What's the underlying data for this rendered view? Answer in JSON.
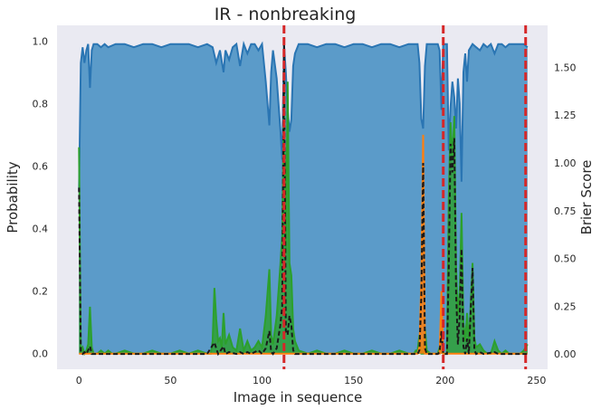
{
  "chart_data": {
    "type": "area",
    "title": "IR - nonbreaking",
    "xlabel": "Image in sequence",
    "ylabel": "Probability",
    "y2label": "Brier Score",
    "xlim": [
      -12,
      256
    ],
    "ylim": [
      -0.05,
      1.05
    ],
    "y2lim": [
      -0.08,
      1.72
    ],
    "x_ticks": [
      0,
      50,
      100,
      150,
      200,
      250
    ],
    "y_ticks": [
      0.0,
      0.2,
      0.4,
      0.6,
      0.8,
      1.0
    ],
    "y2_ticks": [
      0.0,
      0.25,
      0.5,
      0.75,
      1.0,
      1.25,
      1.5
    ],
    "grid": false,
    "boundaries": [
      112,
      199,
      244
    ],
    "colors": {
      "background": "#eaeaf2",
      "blue_fill": "#5b9bc9",
      "blue_line": "#2a75b3",
      "green": "#2ca02c",
      "orange": "#ff7f0e",
      "brier": "#1a1a1a",
      "boundary": "#d62728"
    },
    "series": [
      {
        "kind": "blue",
        "axis": "left",
        "points": [
          [
            0,
            0.52
          ],
          [
            1,
            0.93
          ],
          [
            2,
            0.98
          ],
          [
            3,
            0.93
          ],
          [
            4,
            0.97
          ],
          [
            5,
            0.99
          ],
          [
            6,
            0.85
          ],
          [
            7,
            0.97
          ],
          [
            8,
            0.99
          ],
          [
            10,
            0.99
          ],
          [
            12,
            0.98
          ],
          [
            14,
            0.99
          ],
          [
            16,
            0.98
          ],
          [
            20,
            0.99
          ],
          [
            25,
            0.99
          ],
          [
            30,
            0.98
          ],
          [
            35,
            0.99
          ],
          [
            40,
            0.99
          ],
          [
            45,
            0.98
          ],
          [
            50,
            0.99
          ],
          [
            55,
            0.99
          ],
          [
            60,
            0.99
          ],
          [
            65,
            0.98
          ],
          [
            70,
            0.99
          ],
          [
            73,
            0.98
          ],
          [
            75,
            0.93
          ],
          [
            77,
            0.97
          ],
          [
            79,
            0.9
          ],
          [
            80,
            0.97
          ],
          [
            82,
            0.94
          ],
          [
            84,
            0.98
          ],
          [
            86,
            0.99
          ],
          [
            88,
            0.92
          ],
          [
            90,
            0.99
          ],
          [
            92,
            0.96
          ],
          [
            94,
            0.99
          ],
          [
            96,
            0.99
          ],
          [
            98,
            0.97
          ],
          [
            100,
            0.99
          ],
          [
            102,
            0.87
          ],
          [
            104,
            0.73
          ],
          [
            105,
            0.9
          ],
          [
            106,
            0.97
          ],
          [
            108,
            0.88
          ],
          [
            110,
            0.72
          ],
          [
            111,
            0.62
          ],
          [
            112,
            0.99
          ],
          [
            113,
            0.9
          ],
          [
            114,
            0.78
          ],
          [
            115,
            0.71
          ],
          [
            116,
            0.75
          ],
          [
            117,
            0.92
          ],
          [
            118,
            0.96
          ],
          [
            120,
            0.99
          ],
          [
            125,
            0.99
          ],
          [
            130,
            0.98
          ],
          [
            135,
            0.99
          ],
          [
            140,
            0.99
          ],
          [
            145,
            0.98
          ],
          [
            150,
            0.99
          ],
          [
            155,
            0.99
          ],
          [
            160,
            0.98
          ],
          [
            165,
            0.99
          ],
          [
            170,
            0.99
          ],
          [
            175,
            0.98
          ],
          [
            180,
            0.99
          ],
          [
            184,
            0.99
          ],
          [
            185,
            0.99
          ],
          [
            186,
            0.93
          ],
          [
            187,
            0.75
          ],
          [
            188,
            0.72
          ],
          [
            189,
            0.92
          ],
          [
            190,
            0.99
          ],
          [
            192,
            0.99
          ],
          [
            194,
            0.99
          ],
          [
            196,
            0.99
          ],
          [
            197,
            0.97
          ],
          [
            198,
            0.78
          ],
          [
            199,
            0.99
          ],
          [
            201,
            0.99
          ],
          [
            202,
            0.65
          ],
          [
            203,
            0.79
          ],
          [
            204,
            0.87
          ],
          [
            205,
            0.82
          ],
          [
            206,
            0.72
          ],
          [
            207,
            0.88
          ],
          [
            208,
            0.8
          ],
          [
            209,
            0.55
          ],
          [
            210,
            0.9
          ],
          [
            211,
            0.96
          ],
          [
            212,
            0.87
          ],
          [
            213,
            0.97
          ],
          [
            215,
            0.99
          ],
          [
            217,
            0.98
          ],
          [
            219,
            0.97
          ],
          [
            221,
            0.99
          ],
          [
            223,
            0.98
          ],
          [
            225,
            0.99
          ],
          [
            227,
            0.96
          ],
          [
            229,
            0.99
          ],
          [
            231,
            0.99
          ],
          [
            233,
            0.98
          ],
          [
            235,
            0.99
          ],
          [
            237,
            0.99
          ],
          [
            239,
            0.99
          ],
          [
            241,
            0.99
          ],
          [
            243,
            0.99
          ],
          [
            245,
            0.98
          ]
        ]
      },
      {
        "kind": "green",
        "axis": "left",
        "points": [
          [
            0,
            0.66
          ],
          [
            1,
            0.01
          ],
          [
            2,
            0.02
          ],
          [
            3,
            0.0
          ],
          [
            4,
            0.01
          ],
          [
            5,
            0.03
          ],
          [
            6,
            0.15
          ],
          [
            7,
            0.02
          ],
          [
            8,
            0.0
          ],
          [
            10,
            0.0
          ],
          [
            12,
            0.01
          ],
          [
            14,
            0.0
          ],
          [
            16,
            0.01
          ],
          [
            18,
            0.0
          ],
          [
            20,
            0.0
          ],
          [
            25,
            0.01
          ],
          [
            30,
            0.0
          ],
          [
            35,
            0.0
          ],
          [
            40,
            0.01
          ],
          [
            45,
            0.0
          ],
          [
            50,
            0.0
          ],
          [
            55,
            0.01
          ],
          [
            60,
            0.0
          ],
          [
            65,
            0.01
          ],
          [
            70,
            0.0
          ],
          [
            72,
            0.0
          ],
          [
            73,
            0.04
          ],
          [
            74,
            0.21
          ],
          [
            75,
            0.11
          ],
          [
            76,
            0.04
          ],
          [
            77,
            0.05
          ],
          [
            78,
            0.02
          ],
          [
            79,
            0.13
          ],
          [
            80,
            0.03
          ],
          [
            82,
            0.06
          ],
          [
            84,
            0.02
          ],
          [
            86,
            0.01
          ],
          [
            88,
            0.08
          ],
          [
            90,
            0.01
          ],
          [
            92,
            0.04
          ],
          [
            94,
            0.01
          ],
          [
            96,
            0.02
          ],
          [
            98,
            0.04
          ],
          [
            100,
            0.02
          ],
          [
            102,
            0.12
          ],
          [
            104,
            0.27
          ],
          [
            105,
            0.06
          ],
          [
            106,
            0.03
          ],
          [
            108,
            0.12
          ],
          [
            110,
            0.28
          ],
          [
            111,
            0.38
          ],
          [
            112,
            0.86
          ],
          [
            113,
            0.32
          ],
          [
            114,
            0.87
          ],
          [
            115,
            0.29
          ],
          [
            116,
            0.25
          ],
          [
            117,
            0.08
          ],
          [
            118,
            0.04
          ],
          [
            120,
            0.01
          ],
          [
            125,
            0.0
          ],
          [
            130,
            0.01
          ],
          [
            135,
            0.0
          ],
          [
            140,
            0.0
          ],
          [
            145,
            0.01
          ],
          [
            150,
            0.0
          ],
          [
            155,
            0.0
          ],
          [
            160,
            0.01
          ],
          [
            165,
            0.0
          ],
          [
            170,
            0.0
          ],
          [
            175,
            0.01
          ],
          [
            180,
            0.0
          ],
          [
            183,
            0.0
          ],
          [
            184,
            0.01
          ],
          [
            185,
            0.01
          ],
          [
            186,
            0.06
          ],
          [
            187,
            0.0
          ],
          [
            188,
            0.0
          ],
          [
            189,
            0.08
          ],
          [
            190,
            0.01
          ],
          [
            192,
            0.0
          ],
          [
            194,
            0.0
          ],
          [
            196,
            0.0
          ],
          [
            197,
            0.02
          ],
          [
            198,
            0.01
          ],
          [
            199,
            0.0
          ],
          [
            201,
            0.0
          ],
          [
            202,
            0.5
          ],
          [
            203,
            0.74
          ],
          [
            204,
            0.62
          ],
          [
            205,
            0.76
          ],
          [
            206,
            0.28
          ],
          [
            207,
            0.12
          ],
          [
            208,
            0.2
          ],
          [
            209,
            0.45
          ],
          [
            210,
            0.1
          ],
          [
            211,
            0.04
          ],
          [
            212,
            0.13
          ],
          [
            213,
            0.03
          ],
          [
            215,
            0.29
          ],
          [
            216,
            0.05
          ],
          [
            217,
            0.02
          ],
          [
            219,
            0.03
          ],
          [
            221,
            0.01
          ],
          [
            223,
            0.0
          ],
          [
            225,
            0.0
          ],
          [
            227,
            0.04
          ],
          [
            229,
            0.01
          ],
          [
            231,
            0.0
          ],
          [
            233,
            0.01
          ],
          [
            235,
            0.0
          ],
          [
            237,
            0.0
          ],
          [
            239,
            0.0
          ],
          [
            241,
            0.0
          ],
          [
            243,
            0.01
          ],
          [
            245,
            0.03
          ]
        ]
      },
      {
        "kind": "orange",
        "axis": "left",
        "points": [
          [
            0,
            0.0
          ],
          [
            185,
            0.0
          ],
          [
            186,
            0.02
          ],
          [
            187,
            0.24
          ],
          [
            188,
            0.7
          ],
          [
            189,
            0.0
          ],
          [
            192,
            0.0
          ],
          [
            197,
            0.0
          ],
          [
            198,
            0.2
          ],
          [
            199,
            0.0
          ],
          [
            245,
            0.0
          ]
        ]
      },
      {
        "kind": "brier",
        "axis": "right",
        "points": [
          [
            0,
            0.87
          ],
          [
            1,
            0.01
          ],
          [
            2,
            0.0
          ],
          [
            3,
            0.01
          ],
          [
            4,
            0.0
          ],
          [
            5,
            0.02
          ],
          [
            6,
            0.04
          ],
          [
            7,
            0.0
          ],
          [
            10,
            0.0
          ],
          [
            20,
            0.0
          ],
          [
            30,
            0.0
          ],
          [
            40,
            0.0
          ],
          [
            50,
            0.0
          ],
          [
            60,
            0.0
          ],
          [
            70,
            0.0
          ],
          [
            74,
            0.06
          ],
          [
            75,
            0.03
          ],
          [
            76,
            0.0
          ],
          [
            79,
            0.04
          ],
          [
            80,
            0.0
          ],
          [
            82,
            0.01
          ],
          [
            86,
            0.0
          ],
          [
            88,
            0.01
          ],
          [
            90,
            0.0
          ],
          [
            92,
            0.01
          ],
          [
            94,
            0.0
          ],
          [
            98,
            0.02
          ],
          [
            100,
            0.0
          ],
          [
            102,
            0.03
          ],
          [
            104,
            0.12
          ],
          [
            105,
            0.01
          ],
          [
            106,
            0.0
          ],
          [
            108,
            0.03
          ],
          [
            110,
            0.15
          ],
          [
            111,
            0.25
          ],
          [
            112,
            1.65
          ],
          [
            113,
            0.12
          ],
          [
            114,
            0.1
          ],
          [
            115,
            0.2
          ],
          [
            116,
            0.15
          ],
          [
            117,
            0.02
          ],
          [
            118,
            0.0
          ],
          [
            120,
            0.0
          ],
          [
            130,
            0.0
          ],
          [
            140,
            0.0
          ],
          [
            150,
            0.0
          ],
          [
            160,
            0.0
          ],
          [
            170,
            0.0
          ],
          [
            180,
            0.0
          ],
          [
            185,
            0.0
          ],
          [
            186,
            0.02
          ],
          [
            187,
            0.3
          ],
          [
            188,
            1.0
          ],
          [
            189,
            0.03
          ],
          [
            190,
            0.0
          ],
          [
            196,
            0.0
          ],
          [
            197,
            0.01
          ],
          [
            198,
            0.12
          ],
          [
            199,
            0.0
          ],
          [
            201,
            0.0
          ],
          [
            202,
            0.45
          ],
          [
            203,
            1.1
          ],
          [
            204,
            0.95
          ],
          [
            205,
            1.13
          ],
          [
            206,
            0.32
          ],
          [
            207,
            0.05
          ],
          [
            208,
            0.2
          ],
          [
            209,
            0.55
          ],
          [
            210,
            0.04
          ],
          [
            211,
            0.0
          ],
          [
            212,
            0.08
          ],
          [
            213,
            0.0
          ],
          [
            215,
            0.45
          ],
          [
            216,
            0.02
          ],
          [
            217,
            0.0
          ],
          [
            219,
            0.01
          ],
          [
            221,
            0.0
          ],
          [
            227,
            0.01
          ],
          [
            229,
            0.0
          ],
          [
            245,
            0.0
          ]
        ]
      }
    ]
  }
}
